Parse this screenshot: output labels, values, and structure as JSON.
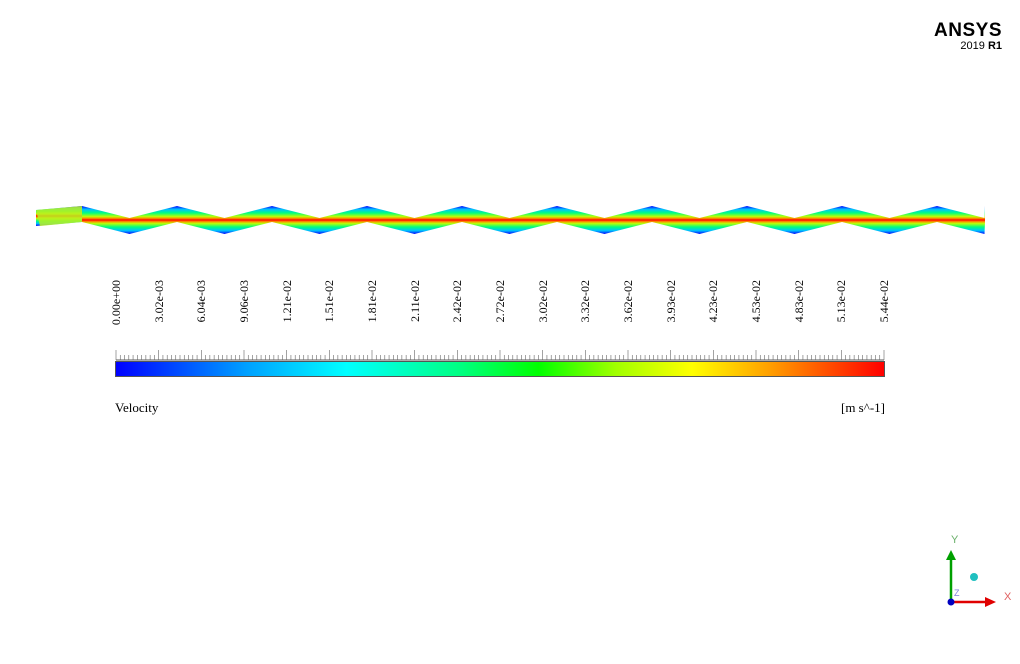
{
  "logo": {
    "brand": "ANSYS",
    "version": "2019",
    "release": "R1"
  },
  "legend": {
    "variable": "Velocity",
    "units": "[m s^-1]",
    "ticks": [
      "0.00e+00",
      "3.02e-03",
      "6.04e-03",
      "9.06e-03",
      "1.21e-02",
      "1.51e-02",
      "1.81e-02",
      "2.11e-02",
      "2.42e-02",
      "2.72e-02",
      "3.02e-02",
      "3.32e-02",
      "3.62e-02",
      "3.93e-02",
      "4.23e-02",
      "4.53e-02",
      "4.83e-02",
      "5.13e-02",
      "5.44e-02"
    ],
    "colors": [
      "#0000ff",
      "#00a0ff",
      "#00ffff",
      "#00ff80",
      "#00ff00",
      "#a0ff00",
      "#ffff00",
      "#ffa000",
      "#ff0000"
    ]
  },
  "axes": {
    "x": "X",
    "y": "Y",
    "z": "Z"
  }
}
